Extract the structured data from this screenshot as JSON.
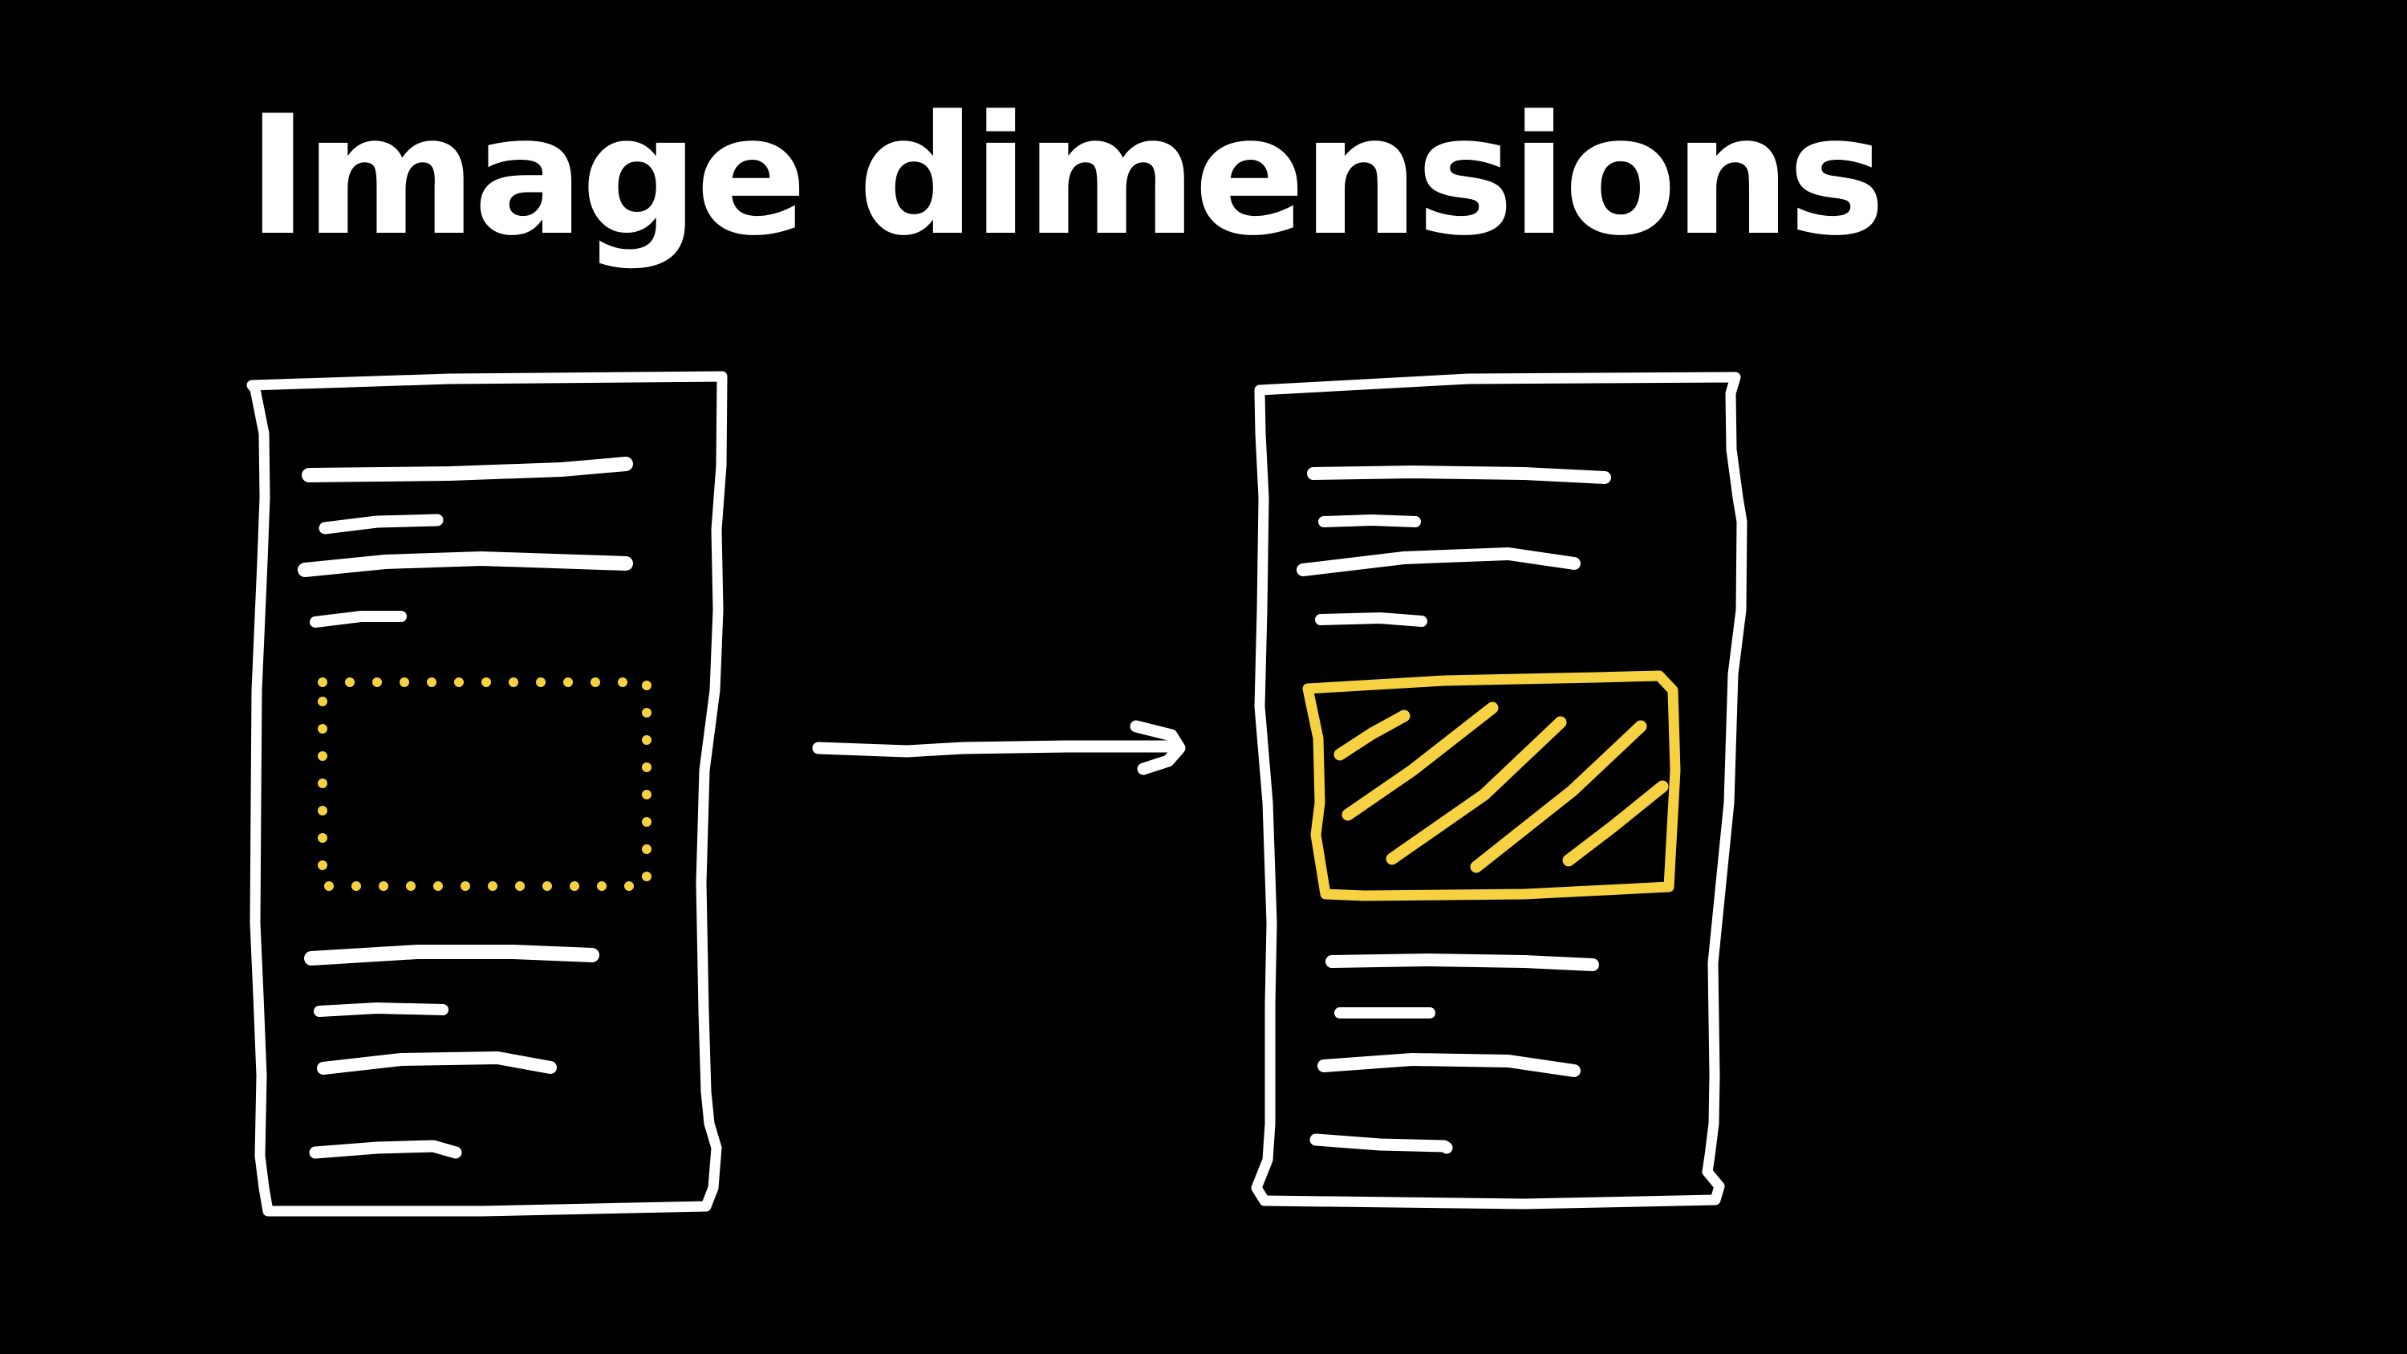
{
  "title": "Image dimensions",
  "colors": {
    "background": "#000000",
    "ink": "#ffffff",
    "highlight": "#f6d242"
  },
  "diagram": {
    "before": "page-with-dotted-image-placeholder",
    "after": "page-with-filled-image-box",
    "connector": "right-arrow-icon"
  }
}
